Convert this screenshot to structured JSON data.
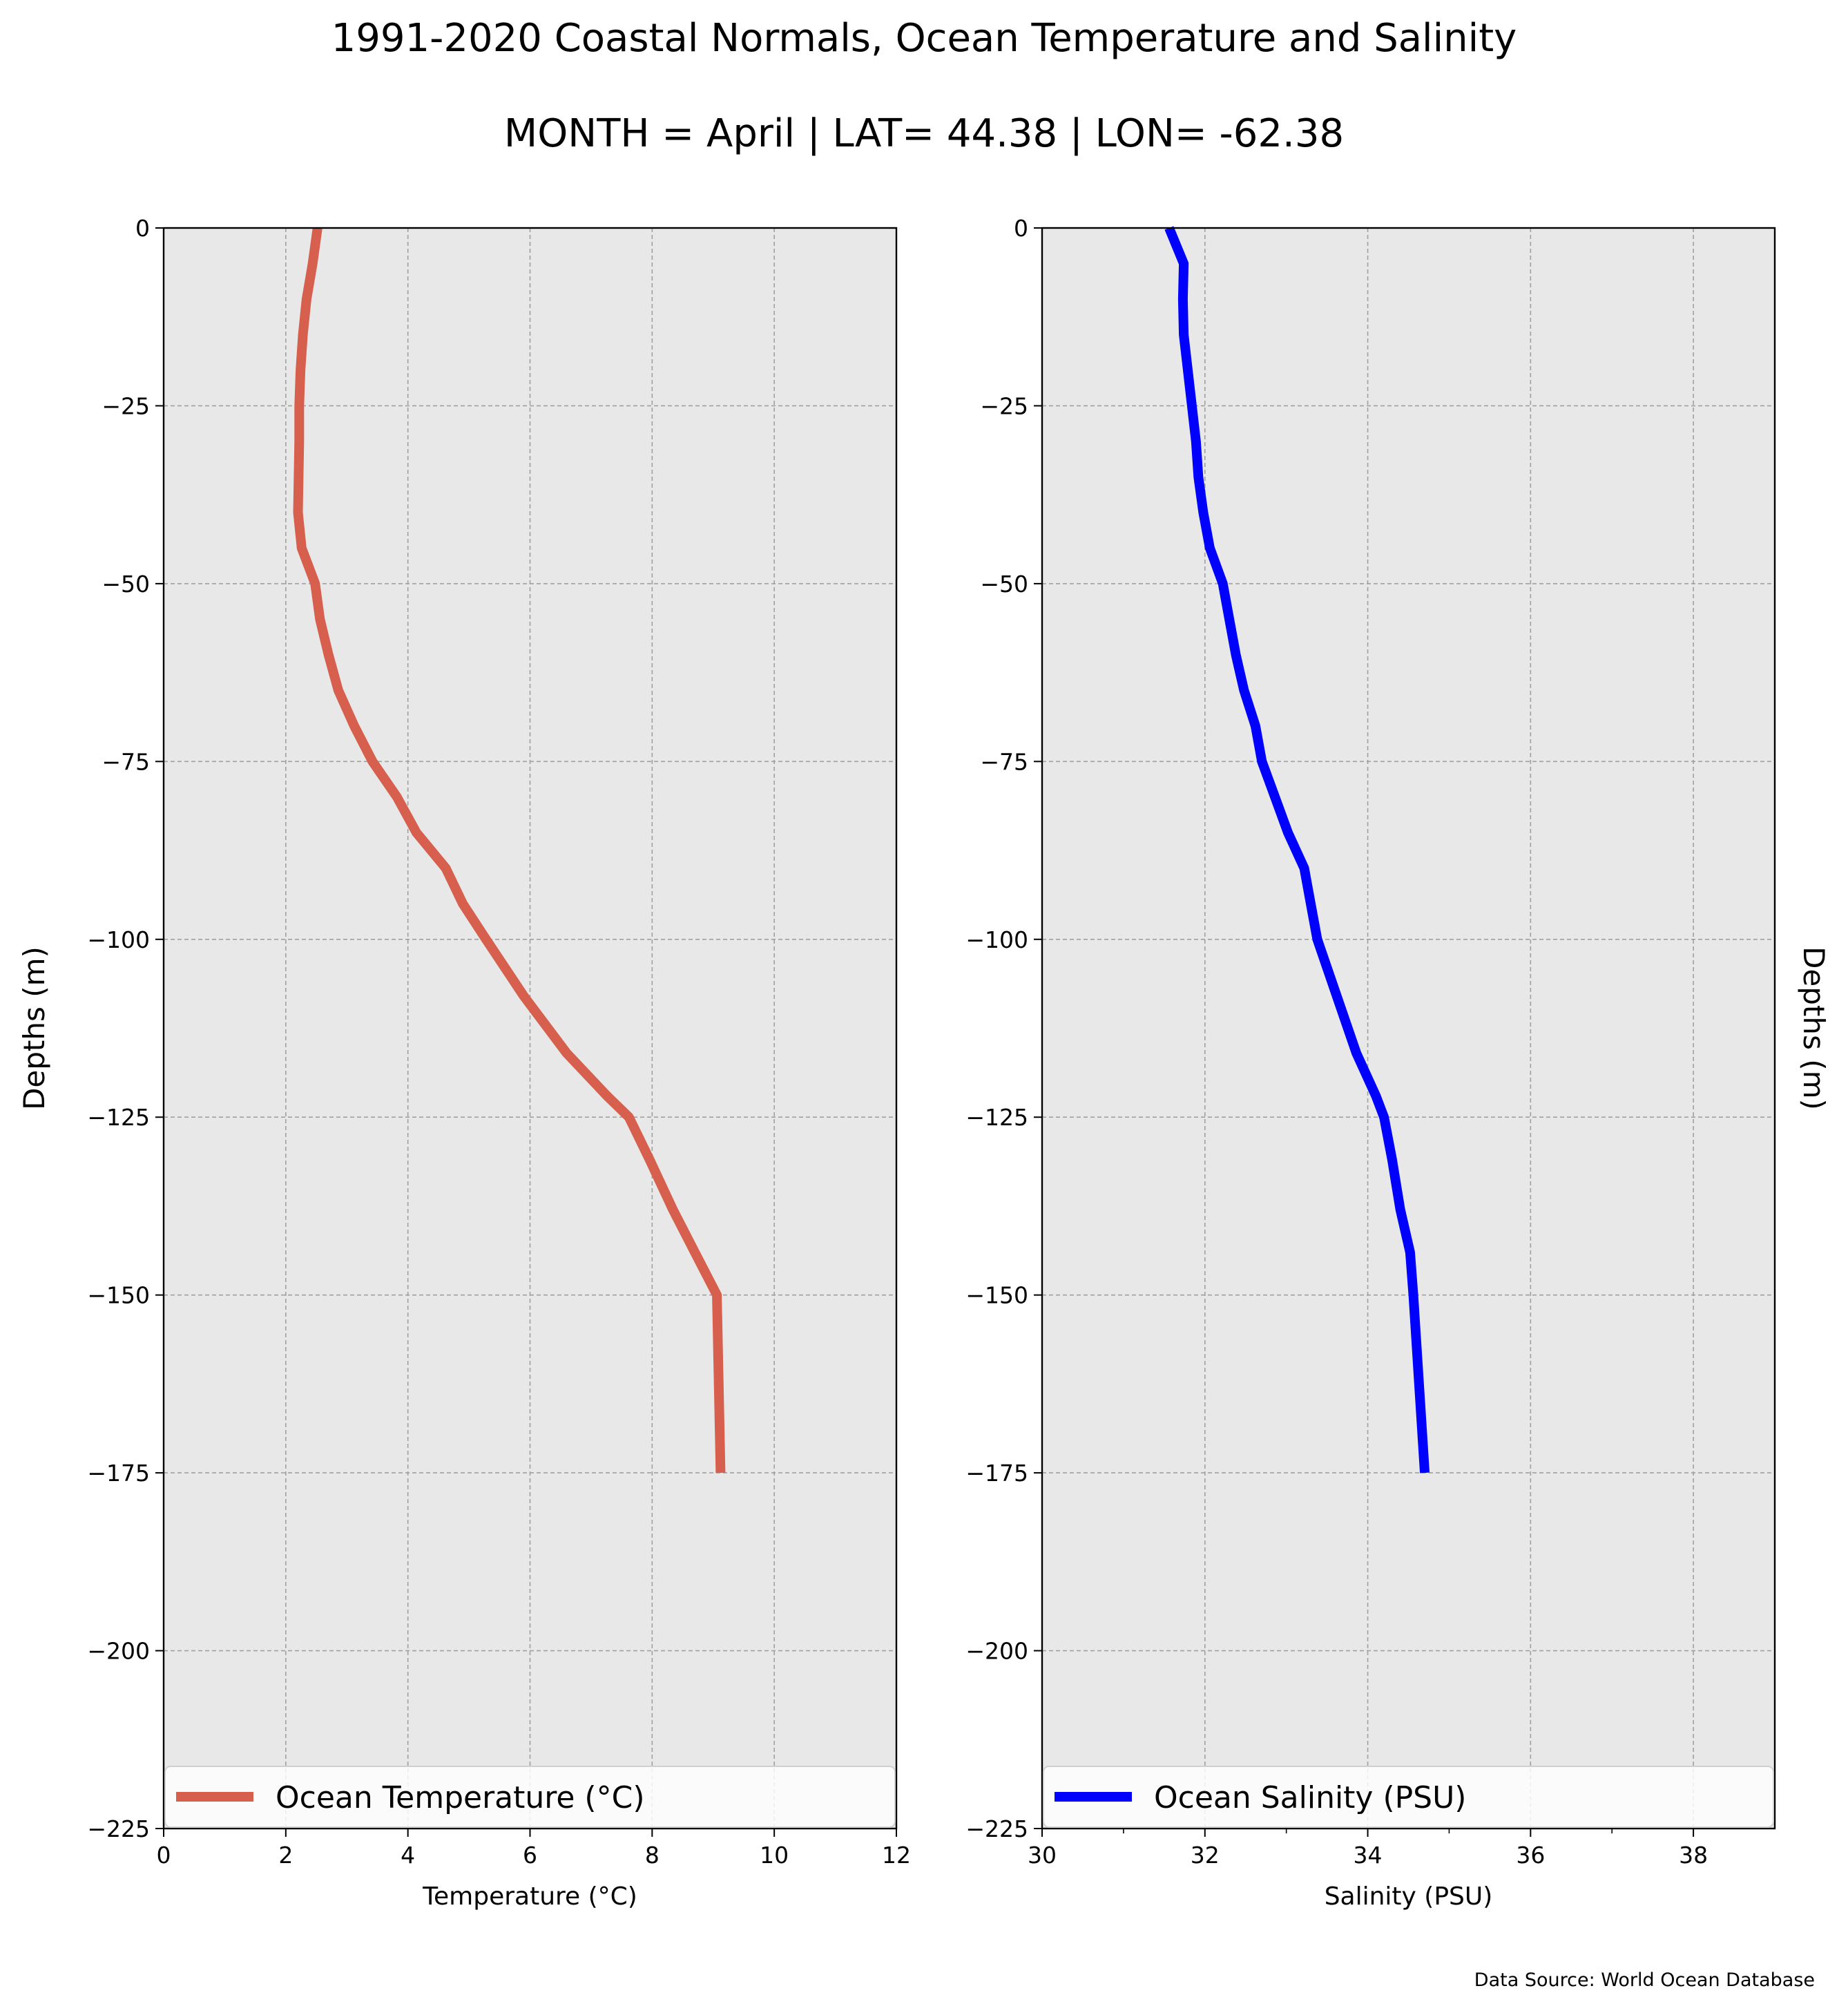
{
  "title": "1991-2020 Coastal Normals, Ocean Temperature and Salinity",
  "subtitle": "MONTH = April | LAT= 44.38 | LON= -62.38",
  "footer": "Data Source: World Ocean Database",
  "colors": {
    "temperature": "#d65f4e",
    "salinity": "#0000ff",
    "plot_background": "#e8e8e8",
    "grid": "#a0a0a0"
  },
  "chart_data": [
    {
      "type": "line",
      "xlabel": "Temperature ($^\\circ$C)",
      "xlabel_display": "Temperature (°C)",
      "ylabel": "Depths (m)",
      "xlim": [
        0,
        12
      ],
      "ylim": [
        -225,
        0
      ],
      "xticks": [
        "0",
        "2",
        "4",
        "6",
        "8",
        "10",
        "12"
      ],
      "yticks": [
        "0",
        "−25",
        "−50",
        "−75",
        "−100",
        "−125",
        "−150",
        "−175",
        "−200",
        "−225"
      ],
      "grid": true,
      "legend_position": "bottom",
      "series": [
        {
          "name": "Ocean Temperature (°C)",
          "color": "#d65f4e",
          "x": [
            2.52,
            2.44,
            2.34,
            2.28,
            2.24,
            2.22,
            2.22,
            2.21,
            2.2,
            2.26,
            2.48,
            2.56,
            2.7,
            2.86,
            3.12,
            3.42,
            3.82,
            4.14,
            4.62,
            4.9,
            5.28,
            5.9,
            6.6,
            7.26,
            7.62,
            7.96,
            8.34,
            8.7,
            9.06,
            9.12
          ],
          "y": [
            0,
            -5,
            -10,
            -15,
            -20,
            -25,
            -30,
            -35,
            -40,
            -45,
            -50,
            -55,
            -60,
            -65,
            -70,
            -75,
            -80,
            -85,
            -90,
            -95,
            -100,
            -108,
            -116,
            -122,
            -125,
            -131,
            -138,
            -144,
            -150,
            -175
          ]
        }
      ]
    },
    {
      "type": "line",
      "xlabel": "Salinity (PSU)",
      "ylabel": "Depths (m)",
      "xlim": [
        30,
        39
      ],
      "ylim": [
        -225,
        0
      ],
      "xticks": [
        "30",
        "32",
        "34",
        "36",
        "38"
      ],
      "yticks": [
        "0",
        "−25",
        "−50",
        "−75",
        "−100",
        "−125",
        "−150",
        "−175",
        "−200",
        "−225"
      ],
      "grid": true,
      "legend_position": "bottom",
      "series": [
        {
          "name": "Ocean Salinity (PSU)",
          "color": "#0000ff",
          "x": [
            31.56,
            31.74,
            31.73,
            31.74,
            31.79,
            31.84,
            31.89,
            31.92,
            31.98,
            32.06,
            32.22,
            32.3,
            32.38,
            32.48,
            32.62,
            32.7,
            32.86,
            33.02,
            33.22,
            33.3,
            33.38,
            33.62,
            33.86,
            34.1,
            34.2,
            34.3,
            34.4,
            34.52,
            34.56,
            34.7
          ],
          "y": [
            0,
            -5,
            -10,
            -15,
            -20,
            -25,
            -30,
            -35,
            -40,
            -45,
            -50,
            -55,
            -60,
            -65,
            -70,
            -75,
            -80,
            -85,
            -90,
            -95,
            -100,
            -108,
            -116,
            -122,
            -125,
            -131,
            -138,
            -144,
            -150,
            -175
          ]
        }
      ]
    }
  ]
}
